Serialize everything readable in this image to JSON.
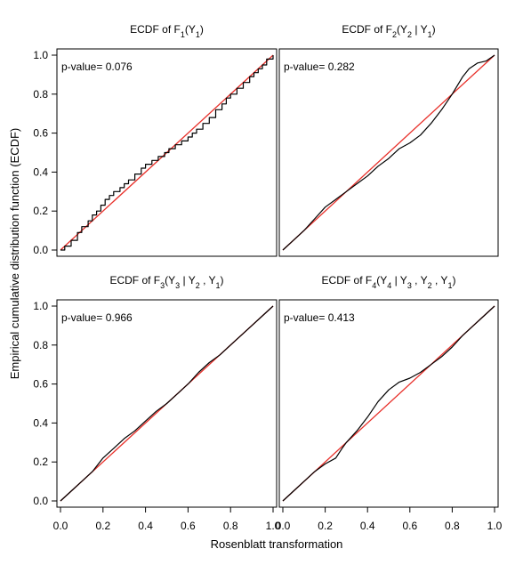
{
  "figure": {
    "xlabel": "Rosenblatt transformation",
    "ylabel": "Empirical cumulative distribution function (ECDF)",
    "reference_line_color": "#e8302a",
    "ecdf_color": "#000000"
  },
  "chart_data": [
    {
      "type": "line",
      "title_parts": [
        {
          "t": "ECDF of F"
        },
        {
          "t": "1",
          "sub": true
        },
        {
          "t": "(Y"
        },
        {
          "t": "1",
          "sub": true
        },
        {
          "t": ")"
        }
      ],
      "annotation": "p-value= 0.076",
      "xlim": [
        0,
        1
      ],
      "ylim": [
        0,
        1
      ],
      "xticks": [
        "0.0",
        "0.2",
        "0.4",
        "0.6",
        "0.8",
        "1.0"
      ],
      "yticks": [
        "0.0",
        "0.2",
        "0.4",
        "0.6",
        "0.8",
        "1.0"
      ],
      "show_xticks": false,
      "show_yticks": true,
      "step": true,
      "series": [
        {
          "x": [
            0,
            0.02,
            0.05,
            0.08,
            0.1,
            0.13,
            0.15,
            0.17,
            0.19,
            0.21,
            0.23,
            0.25,
            0.28,
            0.3,
            0.32,
            0.35,
            0.38,
            0.4,
            0.43,
            0.46,
            0.49,
            0.51,
            0.54,
            0.57,
            0.6,
            0.62,
            0.64,
            0.67,
            0.7,
            0.73,
            0.76,
            0.78,
            0.8,
            0.83,
            0.86,
            0.89,
            0.91,
            0.93,
            0.95,
            0.97,
            1.0
          ],
          "y": [
            0,
            0.02,
            0.05,
            0.09,
            0.12,
            0.15,
            0.18,
            0.2,
            0.23,
            0.26,
            0.28,
            0.3,
            0.32,
            0.34,
            0.36,
            0.39,
            0.42,
            0.44,
            0.46,
            0.48,
            0.5,
            0.52,
            0.54,
            0.56,
            0.58,
            0.6,
            0.62,
            0.65,
            0.68,
            0.72,
            0.75,
            0.78,
            0.8,
            0.83,
            0.86,
            0.89,
            0.91,
            0.93,
            0.95,
            0.98,
            1.0
          ]
        }
      ]
    },
    {
      "type": "line",
      "title_parts": [
        {
          "t": "ECDF of  F"
        },
        {
          "t": "2",
          "sub": true
        },
        {
          "t": "(Y"
        },
        {
          "t": "2",
          "sub": true
        },
        {
          "t": " | Y"
        },
        {
          "t": "1",
          "sub": true
        },
        {
          "t": ")"
        }
      ],
      "annotation": "p-value= 0.282",
      "xlim": [
        0,
        1
      ],
      "ylim": [
        0,
        1
      ],
      "xticks": [
        "0.0",
        "0.2",
        "0.4",
        "0.6",
        "0.8",
        "1.0"
      ],
      "yticks": [
        "0.0",
        "0.2",
        "0.4",
        "0.6",
        "0.8",
        "1.0"
      ],
      "show_xticks": false,
      "show_yticks": false,
      "step": false,
      "series": [
        {
          "x": [
            0,
            0.05,
            0.1,
            0.15,
            0.2,
            0.25,
            0.3,
            0.35,
            0.4,
            0.45,
            0.5,
            0.55,
            0.6,
            0.65,
            0.7,
            0.75,
            0.8,
            0.85,
            0.88,
            0.92,
            0.96,
            1.0
          ],
          "y": [
            0,
            0.05,
            0.1,
            0.16,
            0.22,
            0.26,
            0.3,
            0.34,
            0.38,
            0.43,
            0.47,
            0.52,
            0.55,
            0.59,
            0.65,
            0.72,
            0.8,
            0.89,
            0.93,
            0.96,
            0.97,
            1.0
          ]
        }
      ]
    },
    {
      "type": "line",
      "title_parts": [
        {
          "t": "ECDF of F"
        },
        {
          "t": "3",
          "sub": true
        },
        {
          "t": "(Y"
        },
        {
          "t": "3",
          "sub": true
        },
        {
          "t": " | Y"
        },
        {
          "t": "2",
          "sub": true
        },
        {
          "t": " , Y"
        },
        {
          "t": "1",
          "sub": true
        },
        {
          "t": ")"
        }
      ],
      "annotation": "p-value= 0.966",
      "xlim": [
        0,
        1
      ],
      "ylim": [
        0,
        1
      ],
      "xticks": [
        "0.0",
        "0.2",
        "0.4",
        "0.6",
        "0.8",
        "1.0"
      ],
      "yticks": [
        "0.0",
        "0.2",
        "0.4",
        "0.6",
        "0.8",
        "1.0"
      ],
      "show_xticks": true,
      "show_yticks": true,
      "step": false,
      "series": [
        {
          "x": [
            0,
            0.05,
            0.1,
            0.15,
            0.2,
            0.25,
            0.3,
            0.35,
            0.4,
            0.45,
            0.5,
            0.55,
            0.6,
            0.65,
            0.7,
            0.75,
            0.8,
            0.85,
            0.9,
            0.95,
            1.0
          ],
          "y": [
            0,
            0.05,
            0.1,
            0.15,
            0.22,
            0.27,
            0.32,
            0.36,
            0.41,
            0.46,
            0.5,
            0.55,
            0.6,
            0.66,
            0.71,
            0.75,
            0.8,
            0.85,
            0.9,
            0.95,
            1.0
          ]
        }
      ]
    },
    {
      "type": "line",
      "title_parts": [
        {
          "t": "ECDF of F"
        },
        {
          "t": "4",
          "sub": true
        },
        {
          "t": "(Y"
        },
        {
          "t": "4",
          "sub": true
        },
        {
          "t": " | Y"
        },
        {
          "t": "3",
          "sub": true
        },
        {
          "t": " , Y"
        },
        {
          "t": "2",
          "sub": true
        },
        {
          "t": " , Y"
        },
        {
          "t": "1",
          "sub": true
        },
        {
          "t": ")"
        }
      ],
      "annotation": "p-value= 0.413",
      "xlim": [
        0,
        1
      ],
      "ylim": [
        0,
        1
      ],
      "xticks": [
        "0.0",
        "0.2",
        "0.4",
        "0.6",
        "0.8",
        "1.0"
      ],
      "yticks": [
        "0.0",
        "0.2",
        "0.4",
        "0.6",
        "0.8",
        "1.0"
      ],
      "show_xticks": true,
      "show_yticks": false,
      "step": false,
      "series": [
        {
          "x": [
            0,
            0.05,
            0.1,
            0.15,
            0.2,
            0.25,
            0.28,
            0.3,
            0.35,
            0.4,
            0.45,
            0.5,
            0.55,
            0.6,
            0.65,
            0.7,
            0.75,
            0.8,
            0.85,
            0.9,
            0.95,
            1.0
          ],
          "y": [
            0,
            0.05,
            0.1,
            0.15,
            0.19,
            0.22,
            0.27,
            0.3,
            0.36,
            0.43,
            0.51,
            0.57,
            0.61,
            0.63,
            0.66,
            0.7,
            0.74,
            0.79,
            0.85,
            0.9,
            0.95,
            1.0
          ]
        }
      ]
    }
  ]
}
